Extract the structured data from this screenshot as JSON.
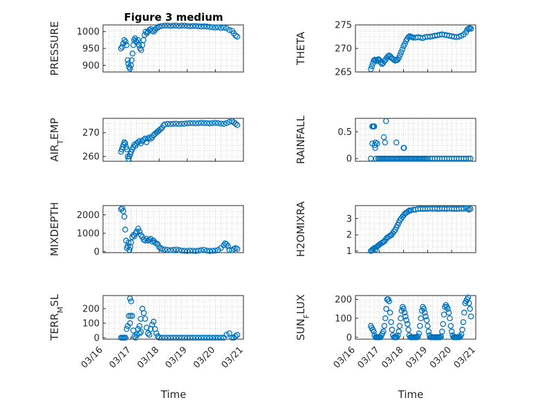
{
  "figure": {
    "title": "Figure 3 medium",
    "xlabel": "Time",
    "marker_color": "#0072BD"
  },
  "chart_data": [
    {
      "type": "scatter",
      "ylabel_parts": [
        "PRESSURE"
      ],
      "ylim": [
        880,
        1020
      ],
      "yticks": [
        900,
        950,
        1000
      ],
      "xlim": [
        "03/16",
        "03/21"
      ],
      "xticks": [
        "03/16",
        "03/17",
        "03/18",
        "03/19",
        "03/20",
        "03/21"
      ],
      "grid": true,
      "x": [
        0.64,
        0.68,
        0.72,
        0.76,
        0.8,
        0.84,
        0.88,
        0.9,
        0.93,
        0.96,
        0.99,
        1.02,
        1.05,
        1.08,
        1.11,
        1.14,
        1.17,
        1.2,
        1.24,
        1.28,
        1.32,
        1.36,
        1.4,
        1.44,
        1.48,
        1.52,
        1.56,
        1.6,
        1.65,
        1.7,
        1.75,
        1.8,
        1.85,
        1.9,
        1.95,
        2.0,
        2.1,
        2.2,
        2.3,
        2.4,
        2.5,
        2.6,
        2.7,
        2.8,
        2.9,
        3.0,
        3.1,
        3.2,
        3.3,
        3.4,
        3.5,
        3.6,
        3.7,
        3.8,
        3.9,
        4.0,
        4.1,
        4.2,
        4.3,
        4.4,
        4.5,
        4.6,
        4.66,
        4.72,
        4.78
      ],
      "y": [
        950,
        955,
        965,
        975,
        970,
        960,
        915,
        905,
        895,
        890,
        900,
        915,
        935,
        960,
        975,
        980,
        972,
        968,
        975,
        960,
        950,
        945,
        960,
        975,
        990,
        1000,
        995,
        1000,
        1005,
        1008,
        1003,
        1000,
        1005,
        1010,
        1012,
        1015,
        1017,
        1018,
        1018,
        1017,
        1018,
        1018,
        1017,
        1018,
        1018,
        1017,
        1016,
        1017,
        1017,
        1016,
        1015,
        1016,
        1015,
        1014,
        1013,
        1012,
        1013,
        1011,
        1012,
        1010,
        1005,
        1002,
        995,
        988,
        985
      ]
    },
    {
      "type": "scatter",
      "ylabel_parts": [
        "THETA"
      ],
      "ylim": [
        265,
        275
      ],
      "yticks": [
        265,
        270,
        275
      ],
      "xlim": [
        "03/16",
        "03/21"
      ],
      "xticks": [
        "03/16",
        "03/17",
        "03/18",
        "03/19",
        "03/20",
        "03/21"
      ],
      "grid": true,
      "x": [
        0.64,
        0.68,
        0.72,
        0.76,
        0.8,
        0.84,
        0.88,
        0.92,
        0.96,
        1.0,
        1.05,
        1.1,
        1.15,
        1.2,
        1.25,
        1.3,
        1.35,
        1.4,
        1.45,
        1.5,
        1.55,
        1.6,
        1.65,
        1.7,
        1.75,
        1.8,
        1.85,
        1.9,
        1.95,
        2.0,
        2.05,
        2.1,
        2.15,
        2.2,
        2.25,
        2.3,
        2.35,
        2.4,
        2.5,
        2.6,
        2.7,
        2.8,
        2.9,
        3.0,
        3.1,
        3.2,
        3.3,
        3.4,
        3.5,
        3.6,
        3.7,
        3.8,
        3.9,
        4.0,
        4.1,
        4.2,
        4.3,
        4.4,
        4.5,
        4.6,
        4.65,
        4.7,
        4.75,
        4.8
      ],
      "y": [
        265.6,
        266.2,
        266.8,
        267.4,
        267.6,
        267.5,
        267.3,
        267.6,
        267.7,
        267.5,
        267.0,
        266.7,
        266.9,
        267.3,
        267.6,
        268.0,
        268.3,
        268.5,
        268.3,
        268.0,
        267.8,
        267.6,
        267.4,
        267.5,
        267.6,
        268.0,
        268.6,
        269.2,
        269.8,
        270.5,
        271.0,
        271.6,
        272.0,
        272.4,
        272.6,
        272.5,
        272.4,
        272.3,
        272.3,
        272.4,
        272.3,
        272.2,
        272.4,
        272.5,
        272.5,
        272.6,
        272.7,
        272.8,
        272.9,
        273.0,
        272.9,
        272.8,
        272.7,
        272.6,
        272.5,
        272.4,
        272.5,
        272.7,
        273.0,
        273.5,
        274.0,
        274.2,
        274.3,
        274.2
      ]
    },
    {
      "type": "scatter",
      "ylabel_parts": [
        "AIR",
        "T",
        "EMP"
      ],
      "ylim": [
        258,
        276
      ],
      "yticks": [
        260,
        270
      ],
      "xlim": [
        "03/16",
        "03/21"
      ],
      "xticks": [
        "03/16",
        "03/17",
        "03/18",
        "03/19",
        "03/20",
        "03/21"
      ],
      "grid": true,
      "x": [
        0.64,
        0.67,
        0.7,
        0.73,
        0.76,
        0.79,
        0.82,
        0.85,
        0.88,
        0.91,
        0.94,
        0.97,
        1.0,
        1.04,
        1.08,
        1.12,
        1.16,
        1.2,
        1.25,
        1.3,
        1.35,
        1.4,
        1.45,
        1.5,
        1.55,
        1.6,
        1.65,
        1.7,
        1.75,
        1.8,
        1.85,
        1.9,
        1.95,
        2.0,
        2.05,
        2.1,
        2.15,
        2.2,
        2.3,
        2.4,
        2.5,
        2.6,
        2.7,
        2.8,
        2.9,
        3.0,
        3.1,
        3.2,
        3.3,
        3.4,
        3.5,
        3.6,
        3.7,
        3.8,
        3.9,
        4.0,
        4.1,
        4.2,
        4.3,
        4.4,
        4.5,
        4.6,
        4.66,
        4.72,
        4.78
      ],
      "y": [
        262,
        263,
        264,
        265,
        266,
        265.5,
        264,
        263,
        260,
        259,
        260,
        261,
        262,
        263,
        264,
        265,
        264.5,
        265.5,
        266,
        266.5,
        265.5,
        266.5,
        267,
        267.5,
        266,
        267.5,
        268,
        267.5,
        268,
        269,
        269.5,
        270,
        270.5,
        271,
        271.5,
        272,
        273,
        273.5,
        273.7,
        273.6,
        273.7,
        273.8,
        273.6,
        273.7,
        273.8,
        273.9,
        274,
        274,
        273.9,
        274,
        274.1,
        274,
        274,
        273.9,
        274,
        274.1,
        274,
        273.8,
        273.7,
        274,
        274.5,
        274.8,
        274.3,
        273.8,
        273.2
      ]
    },
    {
      "type": "scatter",
      "ylabel_parts": [
        "RAINFALL"
      ],
      "ylim": [
        -0.05,
        0.75
      ],
      "yticks": [
        0,
        0.5
      ],
      "xlim": [
        "03/16",
        "03/21"
      ],
      "xticks": [
        "03/16",
        "03/17",
        "03/18",
        "03/19",
        "03/20",
        "03/21"
      ],
      "grid": true,
      "x": [
        0.64,
        0.7,
        0.74,
        0.78,
        0.82,
        0.86,
        0.9,
        0.95,
        1.0,
        1.05,
        1.1,
        1.15,
        1.2,
        1.25,
        1.3,
        1.35,
        1.4,
        1.45,
        1.5,
        1.55,
        1.6,
        1.65,
        1.7,
        1.75,
        1.8,
        1.85,
        1.9,
        1.95,
        2.0,
        2.05,
        2.1,
        2.15,
        2.2,
        2.25,
        2.3,
        2.35,
        2.4,
        2.45,
        2.5,
        2.55,
        2.6,
        2.65,
        2.7,
        2.75,
        2.8,
        2.85,
        2.9,
        2.95,
        3.0,
        3.1,
        3.2,
        3.3,
        3.4,
        3.5,
        3.6,
        3.7,
        3.8,
        3.9,
        4.0,
        4.1,
        4.2,
        4.3,
        4.4,
        4.5,
        4.6,
        4.7,
        4.78,
        0.7,
        0.74,
        0.76,
        0.8,
        0.84,
        1.18,
        1.23,
        1.27,
        1.7,
        2.0,
        2.01,
        2.02
      ],
      "y": [
        0,
        0.28,
        0.6,
        0.6,
        0.2,
        0,
        0.28,
        0,
        0,
        0,
        0,
        0,
        0,
        0,
        0,
        0,
        0,
        0,
        0,
        0,
        0,
        0,
        0,
        0,
        0,
        0,
        0,
        0,
        0,
        0,
        0,
        0,
        0,
        0,
        0,
        0,
        0,
        0,
        0,
        0,
        0,
        0,
        0,
        0,
        0,
        0,
        0,
        0,
        0,
        0,
        0,
        0,
        0,
        0,
        0,
        0,
        0,
        0,
        0,
        0,
        0,
        0,
        0,
        0,
        0,
        0,
        0,
        0.6,
        0.6,
        0.6,
        0.25,
        0.3,
        0.4,
        0.3,
        0.7,
        0.3,
        0.2,
        0.2,
        0.2
      ]
    },
    {
      "type": "scatter",
      "ylabel_parts": [
        "MIXDEPTH"
      ],
      "ylim": [
        -50,
        2500
      ],
      "yticks": [
        0,
        1000,
        2000
      ],
      "xlim": [
        "03/16",
        "03/21"
      ],
      "xticks": [
        "03/16",
        "03/17",
        "03/18",
        "03/19",
        "03/20",
        "03/21"
      ],
      "grid": true,
      "x": [
        0.64,
        0.68,
        0.72,
        0.76,
        0.79,
        0.82,
        0.85,
        0.88,
        0.91,
        0.94,
        0.97,
        1.0,
        1.04,
        1.08,
        1.12,
        1.16,
        1.2,
        1.25,
        1.3,
        1.35,
        1.4,
        1.45,
        1.5,
        1.55,
        1.6,
        1.65,
        1.7,
        1.75,
        1.8,
        1.85,
        1.9,
        1.95,
        2.0,
        2.05,
        2.1,
        2.2,
        2.3,
        2.4,
        2.5,
        2.6,
        2.7,
        2.8,
        2.9,
        3.0,
        3.1,
        3.2,
        3.3,
        3.4,
        3.5,
        3.6,
        3.7,
        3.8,
        3.9,
        4.0,
        4.1,
        4.2,
        4.3,
        4.35,
        4.4,
        4.45,
        4.5,
        4.6,
        4.66,
        4.72,
        4.78
      ],
      "y": [
        2300,
        2350,
        2200,
        1900,
        1200,
        600,
        200,
        300,
        500,
        100,
        250,
        500,
        800,
        900,
        850,
        1000,
        1100,
        1250,
        1100,
        900,
        800,
        650,
        600,
        700,
        600,
        650,
        700,
        550,
        600,
        500,
        450,
        400,
        250,
        200,
        150,
        120,
        100,
        80,
        100,
        120,
        90,
        60,
        50,
        40,
        60,
        50,
        40,
        60,
        80,
        100,
        60,
        40,
        50,
        60,
        100,
        200,
        350,
        450,
        400,
        300,
        100,
        80,
        150,
        200,
        150
      ]
    },
    {
      "type": "scatter",
      "ylabel_parts": [
        "H2OMIXRA"
      ],
      "ylim": [
        0.9,
        3.8
      ],
      "yticks": [
        1,
        2,
        3
      ],
      "xlim": [
        "03/16",
        "03/21"
      ],
      "xticks": [
        "03/16",
        "03/17",
        "03/18",
        "03/19",
        "03/20",
        "03/21"
      ],
      "grid": true,
      "x": [
        0.64,
        0.68,
        0.72,
        0.76,
        0.8,
        0.84,
        0.88,
        0.92,
        0.96,
        1.0,
        1.05,
        1.1,
        1.15,
        1.2,
        1.25,
        1.3,
        1.35,
        1.4,
        1.45,
        1.5,
        1.55,
        1.6,
        1.65,
        1.7,
        1.75,
        1.8,
        1.85,
        1.9,
        1.95,
        2.0,
        2.05,
        2.1,
        2.15,
        2.2,
        2.25,
        2.3,
        2.4,
        2.5,
        2.6,
        2.7,
        2.8,
        2.9,
        3.0,
        3.1,
        3.2,
        3.3,
        3.4,
        3.5,
        3.6,
        3.7,
        3.8,
        3.9,
        4.0,
        4.1,
        4.2,
        4.3,
        4.4,
        4.5,
        4.6,
        4.66,
        4.72,
        4.78
      ],
      "y": [
        1.0,
        1.05,
        1.1,
        1.15,
        1.2,
        1.1,
        1.25,
        1.3,
        1.35,
        1.4,
        1.45,
        1.5,
        1.55,
        1.6,
        1.7,
        1.8,
        1.85,
        1.9,
        1.95,
        2.0,
        2.1,
        2.2,
        2.3,
        2.45,
        2.6,
        2.75,
        2.9,
        3.0,
        3.1,
        3.2,
        3.3,
        3.35,
        3.4,
        3.45,
        3.5,
        3.5,
        3.55,
        3.55,
        3.6,
        3.6,
        3.6,
        3.6,
        3.6,
        3.62,
        3.6,
        3.62,
        3.6,
        3.6,
        3.62,
        3.6,
        3.6,
        3.62,
        3.6,
        3.6,
        3.6,
        3.6,
        3.62,
        3.6,
        3.65,
        3.6,
        3.55,
        3.6
      ]
    },
    {
      "type": "scatter",
      "ylabel_parts": [
        "TERR",
        "M",
        "SL"
      ],
      "ylim": [
        -10,
        290
      ],
      "yticks": [
        0,
        100,
        200
      ],
      "xlim": [
        "03/16",
        "03/21"
      ],
      "xticks": [
        "03/16",
        "03/17",
        "03/18",
        "03/19",
        "03/20",
        "03/21"
      ],
      "grid": true,
      "x": [
        0.64,
        0.68,
        0.72,
        0.76,
        0.8,
        0.84,
        0.88,
        0.92,
        0.96,
        1.0,
        1.04,
        1.08,
        1.12,
        1.16,
        1.2,
        1.25,
        1.3,
        1.35,
        1.4,
        1.45,
        1.5,
        1.55,
        1.6,
        1.65,
        1.7,
        1.75,
        1.8,
        1.85,
        1.9,
        1.95,
        2.0,
        2.1,
        2.2,
        2.3,
        2.4,
        2.5,
        2.6,
        2.7,
        2.8,
        2.9,
        3.0,
        3.1,
        3.2,
        3.3,
        3.4,
        3.5,
        3.6,
        3.7,
        3.8,
        3.9,
        4.0,
        4.1,
        4.2,
        4.3,
        4.4,
        4.5,
        4.6,
        4.66,
        4.72,
        4.78,
        0.96,
        0.98,
        1.3,
        1.34
      ],
      "y": [
        0,
        0,
        0,
        0,
        0,
        60,
        80,
        150,
        270,
        250,
        150,
        50,
        10,
        0,
        20,
        60,
        30,
        40,
        200,
        170,
        130,
        70,
        30,
        20,
        60,
        90,
        110,
        60,
        30,
        10,
        0,
        0,
        0,
        0,
        0,
        0,
        0,
        0,
        0,
        0,
        0,
        0,
        0,
        0,
        0,
        0,
        0,
        0,
        0,
        0,
        0,
        0,
        0,
        0,
        20,
        30,
        0,
        0,
        10,
        20,
        100,
        150,
        80,
        130
      ]
    },
    {
      "type": "scatter",
      "ylabel_parts": [
        "SUN",
        "F",
        "LUX"
      ],
      "ylim": [
        -10,
        220
      ],
      "yticks": [
        0,
        100,
        200
      ],
      "xlim": [
        "03/16",
        "03/21"
      ],
      "xticks": [
        "03/16",
        "03/17",
        "03/18",
        "03/19",
        "03/20",
        "03/21"
      ],
      "grid": true,
      "x": [
        0.64,
        0.68,
        0.72,
        0.76,
        0.8,
        0.84,
        0.88,
        0.92,
        0.96,
        1.0,
        1.04,
        1.08,
        1.12,
        1.16,
        1.2,
        1.24,
        1.28,
        1.32,
        1.36,
        1.4,
        1.44,
        1.48,
        1.52,
        1.56,
        1.6,
        1.64,
        1.68,
        1.72,
        1.76,
        1.8,
        1.84,
        1.88,
        1.92,
        1.96,
        2.0,
        2.04,
        2.08,
        2.12,
        2.16,
        2.2,
        2.24,
        2.28,
        2.32,
        2.36,
        2.4,
        2.44,
        2.48,
        2.52,
        2.56,
        2.6,
        2.64,
        2.68,
        2.72,
        2.76,
        2.8,
        2.84,
        2.88,
        2.92,
        2.96,
        3.0,
        3.04,
        3.08,
        3.12,
        3.16,
        3.2,
        3.24,
        3.28,
        3.32,
        3.36,
        3.4,
        3.44,
        3.48,
        3.52,
        3.56,
        3.6,
        3.64,
        3.68,
        3.72,
        3.76,
        3.8,
        3.84,
        3.88,
        3.92,
        3.96,
        4.0,
        4.04,
        4.08,
        4.12,
        4.16,
        4.2,
        4.24,
        4.28,
        4.32,
        4.36,
        4.4,
        4.44,
        4.48,
        4.52,
        4.56,
        4.6,
        4.64,
        4.68,
        4.72,
        4.76,
        4.8
      ],
      "y": [
        60,
        50,
        40,
        30,
        10,
        0,
        0,
        0,
        0,
        0,
        0,
        10,
        20,
        30,
        60,
        100,
        150,
        200,
        200,
        190,
        130,
        80,
        40,
        10,
        0,
        0,
        0,
        0,
        10,
        30,
        60,
        100,
        140,
        160,
        150,
        130,
        110,
        90,
        70,
        40,
        10,
        0,
        0,
        0,
        0,
        0,
        0,
        0,
        0,
        5,
        20,
        60,
        100,
        140,
        160,
        150,
        130,
        110,
        90,
        60,
        30,
        10,
        0,
        0,
        0,
        0,
        0,
        0,
        0,
        0,
        0,
        0,
        0,
        5,
        30,
        70,
        120,
        160,
        170,
        160,
        150,
        130,
        100,
        60,
        30,
        10,
        0,
        0,
        0,
        0,
        0,
        0,
        0,
        5,
        15,
        40,
        80,
        130,
        180,
        190,
        200,
        210,
        180,
        150,
        110
      ]
    }
  ]
}
